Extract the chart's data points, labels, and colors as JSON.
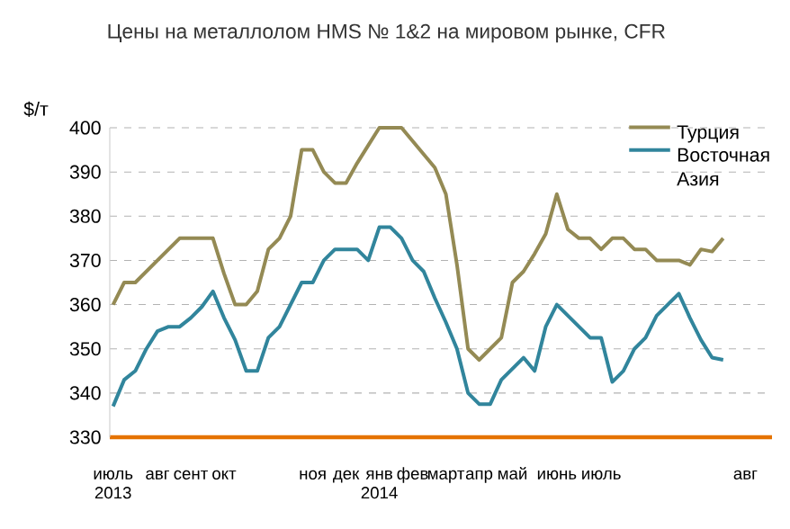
{
  "chart_data": {
    "type": "line",
    "title": "Цены на металлолом HMS № 1&2 на мировом рынке, CFR",
    "ylabel": "$/т",
    "categories": [
      "июль 2013",
      null,
      null,
      null,
      "авг",
      null,
      null,
      "сент",
      null,
      null,
      "окт",
      null,
      null,
      null,
      null,
      null,
      null,
      null,
      "ноя",
      null,
      null,
      "дек",
      null,
      null,
      "янв 2014",
      null,
      null,
      "фев",
      null,
      null,
      "март",
      null,
      null,
      "апр",
      null,
      null,
      "май",
      null,
      null,
      null,
      "июнь",
      null,
      null,
      null,
      "июль",
      null,
      null,
      null,
      null,
      null,
      null,
      null,
      null,
      null,
      null,
      null,
      null,
      "авг",
      null,
      null
    ],
    "series": [
      {
        "name": "Турция",
        "color": "#948a54",
        "values": [
          360,
          365,
          365,
          367.5,
          370,
          372.5,
          375,
          375,
          375,
          375,
          367,
          360,
          360,
          363,
          372.5,
          375,
          380,
          395,
          395,
          390,
          387.5,
          387.5,
          392,
          396,
          400,
          400,
          400,
          397,
          394,
          391,
          385,
          369,
          350,
          347.5,
          350,
          352.5,
          365,
          367.5,
          371.5,
          376,
          385,
          377,
          375,
          375,
          372.5,
          375,
          375,
          372.5,
          372.5,
          370,
          370,
          370,
          369,
          372.5,
          372,
          375,
          null,
          null,
          null,
          null
        ]
      },
      {
        "name": "Восточная Азия",
        "color": "#31859c",
        "values": [
          337,
          343,
          345,
          350,
          354,
          355,
          355,
          357,
          359.5,
          363,
          357,
          352,
          345,
          345,
          352.5,
          355,
          360,
          365,
          365,
          370,
          372.5,
          372.5,
          372.5,
          370,
          377.5,
          377.5,
          375,
          370,
          367.5,
          361.5,
          356,
          350,
          340,
          337.5,
          337.5,
          343,
          345.5,
          348,
          345,
          355,
          360,
          357.5,
          355,
          352.5,
          352.5,
          342.5,
          345,
          350,
          352.5,
          357.5,
          360,
          362.5,
          357,
          352,
          348,
          347.5,
          null,
          null,
          null,
          null
        ]
      }
    ],
    "ylim": [
      330,
      400
    ],
    "yticks": [
      330,
      340,
      350,
      360,
      370,
      380,
      390,
      400
    ],
    "grid": "y",
    "legend": "top right",
    "marker": "none",
    "line_style": "solid"
  }
}
